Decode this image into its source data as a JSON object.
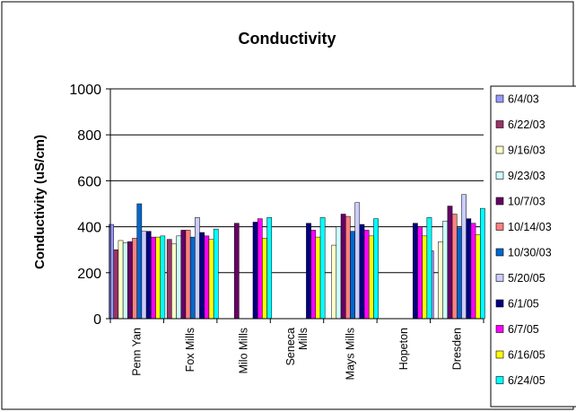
{
  "chart_data": {
    "type": "bar",
    "title": "Conductivity",
    "xlabel": "",
    "ylabel": "Conductivity (uS/cm)",
    "ylim": [
      0,
      1000
    ],
    "yticks": [
      0,
      200,
      400,
      600,
      800,
      1000
    ],
    "grid": true,
    "legend_position": "right",
    "categories": [
      [
        "Penn Yan"
      ],
      [
        "Fox Mills"
      ],
      [
        "Milo Mills"
      ],
      [
        "Seneca",
        "Mills"
      ],
      [
        "Mays Mills"
      ],
      [
        "Hopeton"
      ],
      [
        "Dresden"
      ]
    ],
    "series": [
      {
        "name": "6/4/03",
        "color": "#9999ff",
        "values": [
          410,
          null,
          null,
          null,
          null,
          null,
          295
        ]
      },
      {
        "name": "6/22/03",
        "color": "#993366",
        "values": [
          300,
          345,
          null,
          null,
          null,
          null,
          null
        ]
      },
      {
        "name": "9/16/03",
        "color": "#ffffcc",
        "values": [
          340,
          325,
          null,
          null,
          320,
          null,
          335
        ]
      },
      {
        "name": "9/23/03",
        "color": "#ccffff",
        "values": [
          330,
          360,
          null,
          null,
          400,
          null,
          425
        ]
      },
      {
        "name": "10/7/03",
        "color": "#660066",
        "values": [
          335,
          385,
          415,
          null,
          455,
          null,
          490
        ]
      },
      {
        "name": "10/14/03",
        "color": "#ff8080",
        "values": [
          350,
          385,
          null,
          null,
          445,
          null,
          455
        ]
      },
      {
        "name": "10/30/03",
        "color": "#0066cc",
        "values": [
          500,
          355,
          null,
          null,
          380,
          null,
          395
        ]
      },
      {
        "name": "5/20/05",
        "color": "#ccccff",
        "values": [
          380,
          440,
          null,
          null,
          505,
          null,
          540
        ]
      },
      {
        "name": "6/1/05",
        "color": "#000080",
        "values": [
          380,
          375,
          420,
          415,
          410,
          415,
          435
        ]
      },
      {
        "name": "6/7/05",
        "color": "#ff00ff",
        "values": [
          355,
          360,
          435,
          385,
          385,
          400,
          415
        ]
      },
      {
        "name": "6/16/05",
        "color": "#ffff00",
        "values": [
          355,
          345,
          350,
          355,
          360,
          360,
          365
        ]
      },
      {
        "name": "6/24/05",
        "color": "#00ffff",
        "values": [
          360,
          390,
          440,
          440,
          435,
          440,
          480
        ]
      }
    ]
  }
}
